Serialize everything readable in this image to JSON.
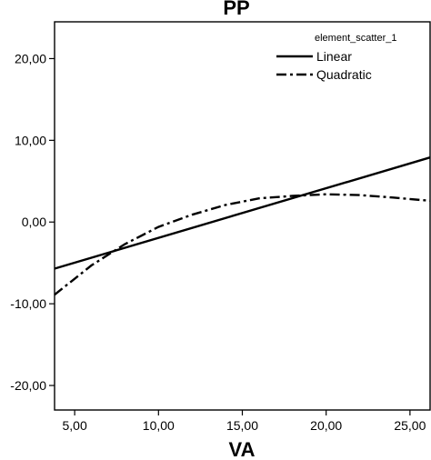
{
  "chart_data": {
    "type": "line",
    "title": "PP",
    "xlabel": "VA",
    "ylabel": "",
    "xlim": [
      3.8,
      26.2
    ],
    "ylim": [
      -23.0,
      24.5
    ],
    "xticks": [
      5,
      10,
      15,
      20,
      25
    ],
    "xtick_labels": [
      "5,00",
      "10,00",
      "15,00",
      "20,00",
      "25,00"
    ],
    "yticks": [
      -20,
      -10,
      0,
      10,
      20
    ],
    "ytick_labels": [
      "-20,00",
      "-10,00",
      "0,00",
      "10,00",
      "20,00"
    ],
    "grid": false,
    "legend": {
      "title": "element_scatter_1",
      "placement": "top-right",
      "entries": [
        "Linear",
        "Quadratic"
      ]
    },
    "series": [
      {
        "name": "Linear",
        "style": "solid",
        "x": [
          3.8,
          26.2
        ],
        "y": [
          -5.7,
          7.9
        ]
      },
      {
        "name": "Quadratic",
        "style": "dash-dot",
        "x": [
          3.8,
          6,
          8,
          10,
          12,
          14,
          16,
          18,
          20,
          22,
          24,
          26.2
        ],
        "y": [
          -8.9,
          -5.3,
          -2.7,
          -0.6,
          0.9,
          2.1,
          2.9,
          3.2,
          3.4,
          3.3,
          3.0,
          2.6
        ]
      }
    ]
  }
}
